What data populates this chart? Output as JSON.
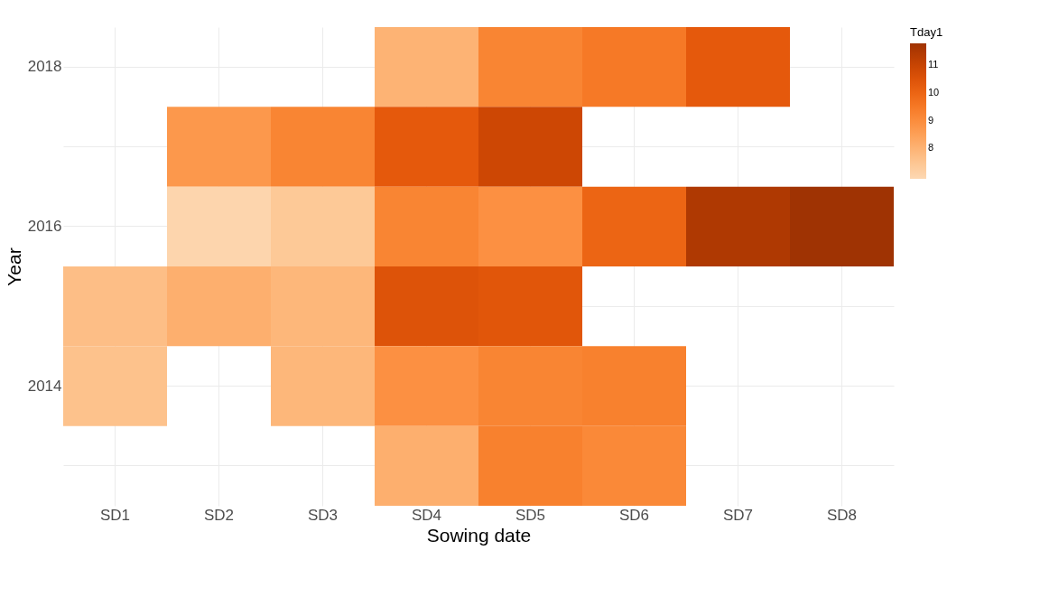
{
  "chart_data": {
    "type": "heatmap",
    "xlabel": "Sowing date",
    "ylabel": "Year",
    "legend_title": "Tday1",
    "categories": [
      "SD1",
      "SD2",
      "SD3",
      "SD4",
      "SD5",
      "SD6",
      "SD7",
      "SD8"
    ],
    "y_categories": [
      "2018",
      null,
      "2016",
      null,
      "2014",
      null
    ],
    "cells": [
      [
        null,
        null,
        null,
        8.0,
        9.2,
        9.5,
        10.3,
        null
      ],
      [
        null,
        8.7,
        9.2,
        10.3,
        10.9,
        null,
        null,
        null
      ],
      [
        null,
        7.0,
        7.4,
        9.2,
        8.9,
        10.0,
        11.5,
        11.8
      ],
      [
        7.7,
        8.1,
        7.9,
        10.5,
        10.4,
        null,
        null,
        null
      ],
      [
        7.6,
        null,
        7.9,
        8.9,
        9.2,
        9.3,
        null,
        null
      ],
      [
        null,
        null,
        null,
        8.1,
        9.3,
        9.1,
        null,
        null
      ]
    ],
    "clim": [
      6.9,
      11.8
    ],
    "cticks": [
      8,
      9,
      10,
      11
    ],
    "grid": true
  }
}
